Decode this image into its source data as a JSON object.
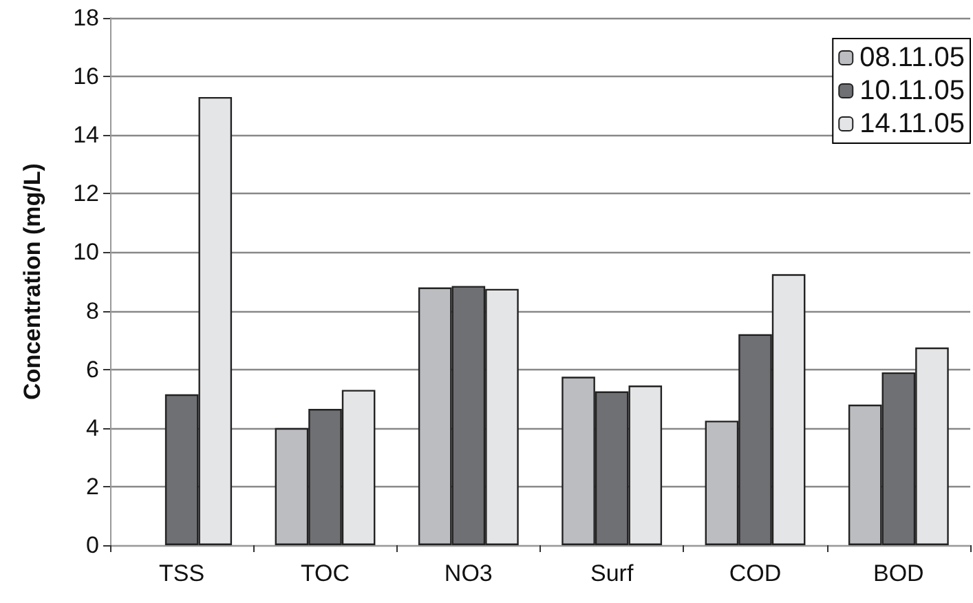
{
  "chart_data": {
    "type": "bar",
    "ylabel": "Concentration (mg/L)",
    "categories": [
      "TSS",
      "TOC",
      "NO3",
      "Surf",
      "COD",
      "BOD"
    ],
    "series": [
      {
        "name": "08.11.05",
        "color": "#bcbdc1",
        "values": [
          null,
          4.0,
          8.8,
          5.75,
          4.25,
          4.8
        ]
      },
      {
        "name": "10.11.05",
        "color": "#6f7074",
        "values": [
          5.15,
          4.65,
          8.85,
          5.25,
          7.2,
          5.9
        ]
      },
      {
        "name": "14.11.05",
        "color": "#e4e5e7",
        "values": [
          15.3,
          5.3,
          8.75,
          5.45,
          9.25,
          6.75
        ]
      }
    ],
    "ylim": [
      0,
      18
    ],
    "yticks": [
      0,
      2,
      4,
      6,
      8,
      10,
      12,
      14,
      16,
      18
    ],
    "grid": "y",
    "legend": "top right"
  }
}
